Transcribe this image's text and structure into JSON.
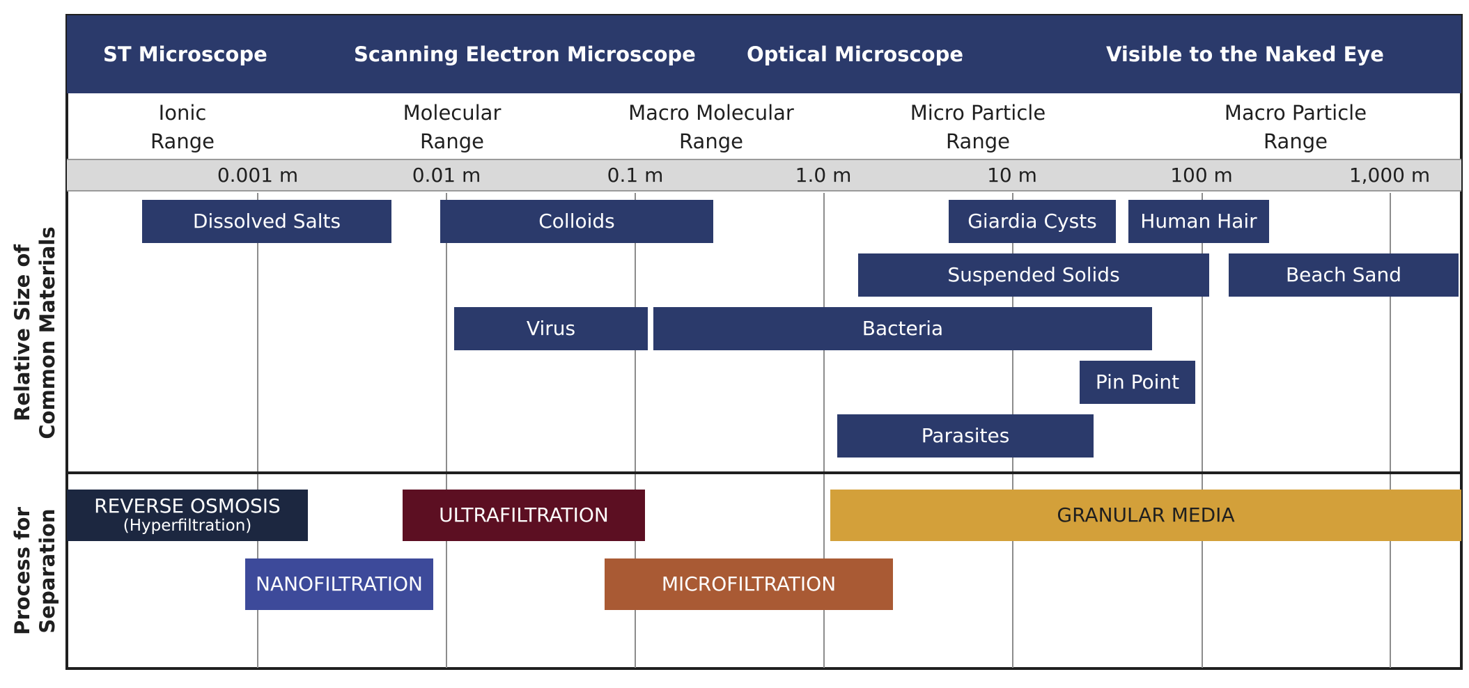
{
  "header": {
    "st": "ST Microscope",
    "sem": "Scanning Electron Microscope",
    "optical": "Optical Microscope",
    "visible": "Visible to the Naked Eye"
  },
  "ranges": {
    "ionic": "Ionic\nRange",
    "molecular": "Molecular\nRange",
    "macro_molecular": "Macro Molecular\nRange",
    "micro_particle": "Micro Particle\nRange",
    "macro_particle": "Macro Particle\nRange"
  },
  "scale": [
    "0.001 m",
    "0.01 m",
    "0.1 m",
    "1.0 m",
    "10 m",
    "100 m",
    "1,000 m"
  ],
  "side_labels": {
    "materials": "Relative Size of\nCommon Materials",
    "process": "Process for\nSeparation"
  },
  "materials": {
    "dissolved_salts": "Dissolved Salts",
    "colloids": "Colloids",
    "giardia": "Giardia Cysts",
    "human_hair": "Human Hair",
    "suspended_solids": "Suspended Solids",
    "beach_sand": "Beach Sand",
    "virus": "Virus",
    "bacteria": "Bacteria",
    "pin_point": "Pin Point",
    "parasites": "Parasites"
  },
  "processes": {
    "reverse_osmosis": "REVERSE OSMOSIS",
    "reverse_osmosis_sub": "(Hyperfiltration)",
    "ultrafiltration": "ULTRAFILTRATION",
    "granular_media": "GRANULAR MEDIA",
    "nanofiltration": "NANOFILTRATION",
    "microfiltration": "MICROFILTRATION"
  },
  "colors": {
    "navy": "#2b3a6b",
    "reverse_osmosis": "#1c2740",
    "ultrafiltration": "#5c0f22",
    "granular_media": "#d3a03a",
    "nanofiltration": "#3d4a9a",
    "microfiltration": "#a95a34"
  }
}
